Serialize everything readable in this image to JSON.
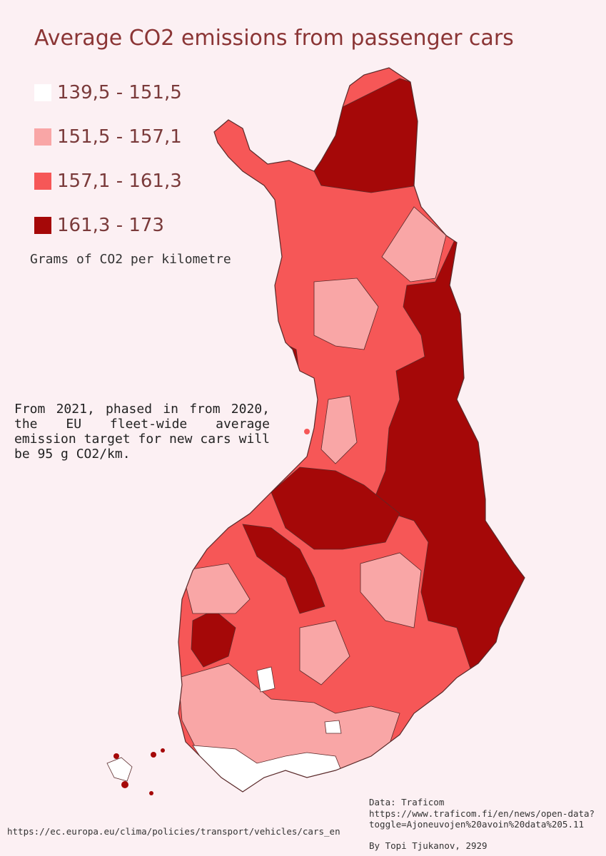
{
  "title": "Average CO2 emissions from passenger cars",
  "legend": {
    "items": [
      {
        "label": "139,5 - 151,5",
        "color": "#ffffff"
      },
      {
        "label": "151,5 - 157,1",
        "color": "#f9a6a6"
      },
      {
        "label": "157,1 - 161,3",
        "color": "#f65757"
      },
      {
        "label": "161,3 - 173",
        "color": "#a50808"
      }
    ],
    "unit": "Grams of CO2 per kilometre"
  },
  "note": "From 2021, phased in from 2020, the EU fleet-wide average emission target for new cars will be 95 g CO2/km.",
  "source": {
    "text": "Data: Traficom\nhttps://www.traficom.fi/en/news/open-data?\ntoggle=Ajoneuvojen%20avoin%20data%205.11",
    "author": "By Topi Tjukanov, 2929",
    "eu_link": "https://ec.europa.eu/clima/policies/transport/vehicles/cars_en"
  },
  "map": {
    "region": "Finland",
    "outline_color": "#5a2a2a"
  }
}
